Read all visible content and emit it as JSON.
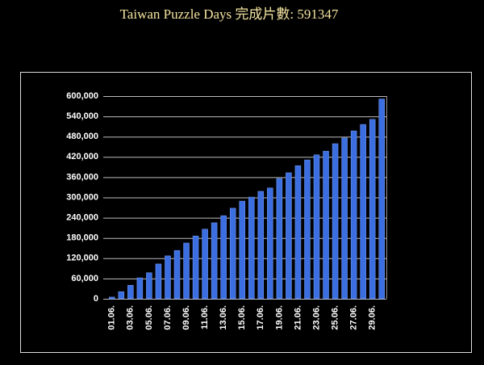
{
  "chart_data": {
    "type": "bar",
    "title": "Taiwan Puzzle Days 完成片數: 591347",
    "categories": [
      "01.06.",
      null,
      "03.06.",
      null,
      "05.06.",
      null,
      "07.06.",
      null,
      "09.06.",
      null,
      "11.06.",
      null,
      "13.06.",
      null,
      "15.06.",
      null,
      "17.06.",
      null,
      "19.06.",
      null,
      "21.06.",
      null,
      "23.06.",
      null,
      "25.06.",
      null,
      "27.06.",
      null,
      "29.06.",
      null
    ],
    "values": [
      5000,
      21000,
      40000,
      62000,
      77000,
      103000,
      127000,
      143000,
      165000,
      186000,
      206000,
      225000,
      246000,
      268000,
      289000,
      301000,
      318000,
      328000,
      356000,
      373000,
      394000,
      411000,
      426000,
      437000,
      459000,
      476000,
      497000,
      516000,
      531000,
      591347
    ],
    "color": "#3b6ee0",
    "ylim": [
      0,
      600000
    ],
    "yticks": [
      0,
      {
        "value": 60000,
        "label": "60,000"
      },
      {
        "value": 120000,
        "label": "120,000"
      },
      {
        "value": 180000,
        "label": "180,000"
      },
      {
        "value": 240000,
        "label": "240,000"
      },
      {
        "value": 300000,
        "label": "300,000"
      },
      {
        "value": 360000,
        "label": "360,000"
      },
      {
        "value": 420000,
        "label": "420,000"
      },
      {
        "value": 480000,
        "label": "480,000"
      },
      {
        "value": 540000,
        "label": "540,000"
      },
      {
        "value": 600000,
        "label": "600,000"
      }
    ],
    "grid": true
  }
}
